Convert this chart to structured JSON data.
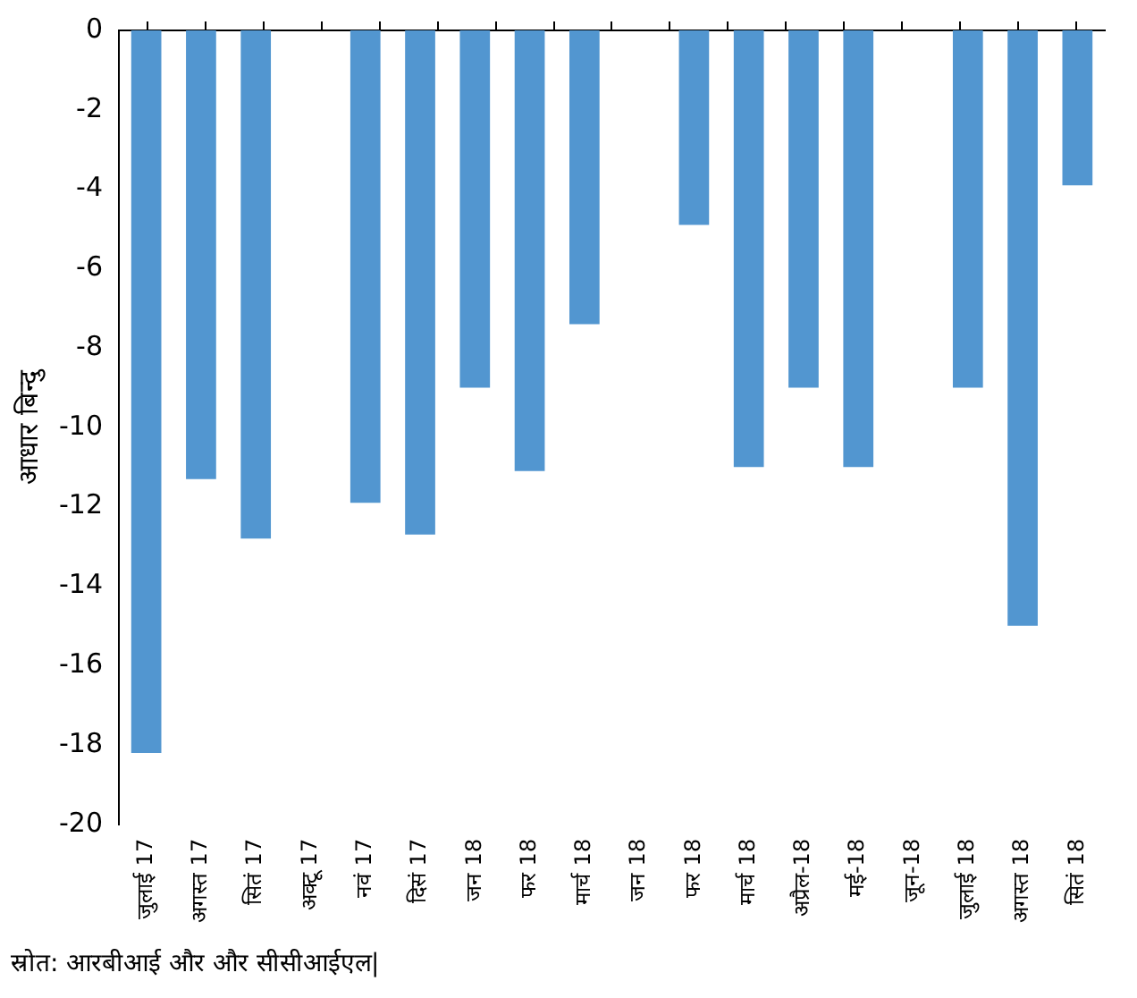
{
  "chart_data": {
    "type": "bar",
    "categories": [
      "जुलाई 17",
      "अगस्त 17",
      "सितं 17",
      "अक्टू 17",
      "नवं 17",
      "दिसं 17",
      "जन 18",
      "फर 18",
      "मार्च 18",
      "जन 18",
      "फर 18",
      "मार्च 18",
      "अप्रैल-18",
      "मई-18",
      "जून-18",
      "जुलाई 18",
      "अगस्त 18",
      "सितं 18"
    ],
    "values": [
      -18.2,
      -11.3,
      -12.8,
      null,
      -11.9,
      -12.7,
      -9,
      -11.1,
      -7.4,
      null,
      -4.9,
      -11,
      -9,
      -11,
      null,
      -9,
      -15,
      -3.9
    ],
    "color": "#5296d0",
    "ylabel": "आधार बिन्दु",
    "ylim": [
      -20,
      0
    ],
    "yticks": [
      0,
      -2,
      -4,
      -6,
      -8,
      -10,
      -12,
      -14,
      -16,
      -18,
      -20
    ],
    "grid": false,
    "legend": false,
    "annotations": [
      "स्रोत: आरबीआई और और सीसीआईएल|"
    ]
  }
}
